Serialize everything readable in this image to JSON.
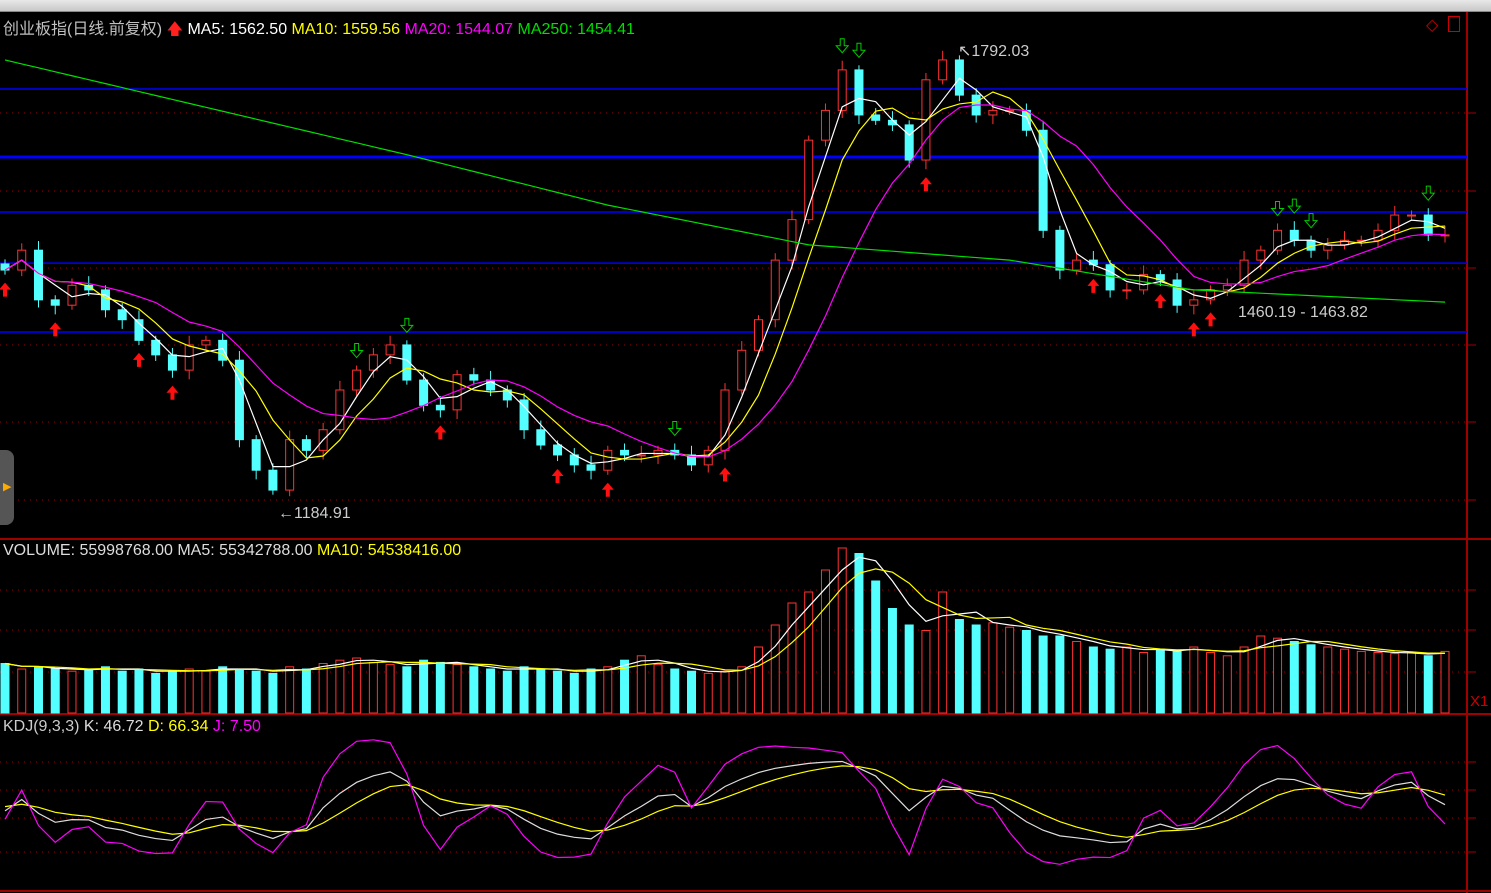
{
  "header": {
    "title": "创业板指(日线.前复权)",
    "ma5": "MA5: 1562.50",
    "ma10": "MA10: 1559.56",
    "ma20": "MA20: 1544.07",
    "ma250": "MA250: 1454.41"
  },
  "volume_header": {
    "volume": "VOLUME: 55998768.00",
    "ma5": "MA5: 55342788.00",
    "ma10": "MA10: 54538416.00"
  },
  "kdj_header": {
    "name": "KDJ(9,3,3)",
    "k": "K: 46.72",
    "d": "D: 66.34",
    "j": "J: 7.50"
  },
  "axis": {
    "volume_unit": "X1"
  },
  "annotations": {
    "high": "1792.03",
    "low": "1184.91",
    "range": "1460.19 - 1463.82"
  },
  "colors": {
    "up": "#ff3232",
    "down": "#54ffff",
    "ma5": "#ffffff",
    "ma10": "#ffff00",
    "ma20": "#ff00ff",
    "ma250": "#00e000",
    "drawn_line": "#0000ff",
    "grid": "#a00000"
  },
  "chart_data": {
    "type": "candlestick",
    "closes": [
      1504,
      1530,
      1465,
      1458,
      1484,
      1478,
      1452,
      1439,
      1412,
      1393,
      1373,
      1406,
      1412,
      1386,
      1282,
      1242,
      1216,
      1282,
      1268,
      1295,
      1347,
      1373,
      1393,
      1406,
      1360,
      1327,
      1321,
      1367,
      1360,
      1347,
      1334,
      1295,
      1275,
      1262,
      1249,
      1242,
      1268,
      1262,
      1262,
      1268,
      1262,
      1249,
      1268,
      1347,
      1399,
      1439,
      1517,
      1570,
      1674,
      1713,
      1766,
      1707,
      1700,
      1694,
      1648,
      1753,
      1779,
      1733,
      1707,
      1713,
      1713,
      1687,
      1556,
      1504,
      1517,
      1511,
      1478,
      1478,
      1498,
      1491,
      1458,
      1465,
      1478,
      1484,
      1517,
      1530,
      1556,
      1543,
      1530,
      1537,
      1543,
      1543,
      1556,
      1576,
      1576,
      1550,
      1550
    ],
    "volume_millions": [
      45,
      40,
      42,
      40,
      38,
      40,
      42,
      38,
      40,
      36,
      38,
      40,
      38,
      42,
      40,
      38,
      36,
      42,
      40,
      45,
      48,
      50,
      46,
      44,
      42,
      48,
      46,
      44,
      42,
      40,
      38,
      42,
      40,
      38,
      36,
      40,
      42,
      48,
      52,
      44,
      40,
      38,
      36,
      38,
      42,
      60,
      80,
      100,
      110,
      130,
      150,
      145,
      120,
      95,
      80,
      75,
      110,
      85,
      80,
      82,
      78,
      75,
      70,
      70,
      65,
      60,
      58,
      60,
      55,
      58,
      56,
      60,
      55,
      52,
      60,
      70,
      68,
      65,
      62,
      60,
      58,
      56,
      55,
      54,
      55,
      52,
      56
    ],
    "ma250_points": [
      {
        "i": 0,
        "v": 1779
      },
      {
        "i": 24,
        "v": 1655
      },
      {
        "i": 36,
        "v": 1589
      },
      {
        "i": 48,
        "v": 1537
      },
      {
        "i": 60,
        "v": 1517
      },
      {
        "i": 71,
        "v": 1478
      },
      {
        "i": 86,
        "v": 1462
      }
    ],
    "drawn_lines": [
      1741,
      1652,
      1580,
      1513,
      1423
    ],
    "buy_signals": [
      0,
      3,
      8,
      10,
      26,
      33,
      36,
      43,
      55,
      65,
      69,
      71,
      72
    ],
    "sell_signals": [
      21,
      24,
      40,
      50,
      51,
      76,
      77,
      78,
      85
    ],
    "high": {
      "i": 56,
      "v": 1792.03
    },
    "low": {
      "i": 16,
      "v": 1184.91
    },
    "price_range": [
      1184.91,
      1792.03
    ]
  }
}
